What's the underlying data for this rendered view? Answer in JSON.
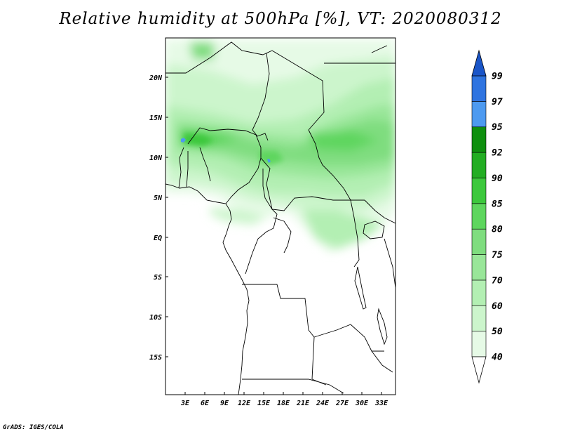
{
  "title": "Relative humidity at 500hPa [%], VT: 2020080312",
  "credit": "GrADS: IGES/COLA",
  "axes": {
    "lon_labels": [
      "3E",
      "6E",
      "9E",
      "12E",
      "15E",
      "18E",
      "21E",
      "24E",
      "27E",
      "30E",
      "33E"
    ],
    "lat_labels": [
      "20N",
      "15N",
      "10N",
      "5N",
      "EQ",
      "5S",
      "10S",
      "15S"
    ]
  },
  "colorbar": {
    "levels": [
      "40",
      "50",
      "60",
      "70",
      "75",
      "80",
      "85",
      "90",
      "92",
      "95",
      "97",
      "99"
    ],
    "colors": [
      "#ffffff",
      "#e6fae6",
      "#ccf5cc",
      "#b3efb3",
      "#99e699",
      "#7fdd7f",
      "#5ed65e",
      "#3cc83c",
      "#23ad23",
      "#0f8f0f",
      "#4d9af0",
      "#2f74e0",
      "#1a55c8"
    ]
  },
  "field": {
    "variable": "Relative humidity",
    "level": "500hPa",
    "units": "%",
    "valid_time": "2020080312"
  }
}
